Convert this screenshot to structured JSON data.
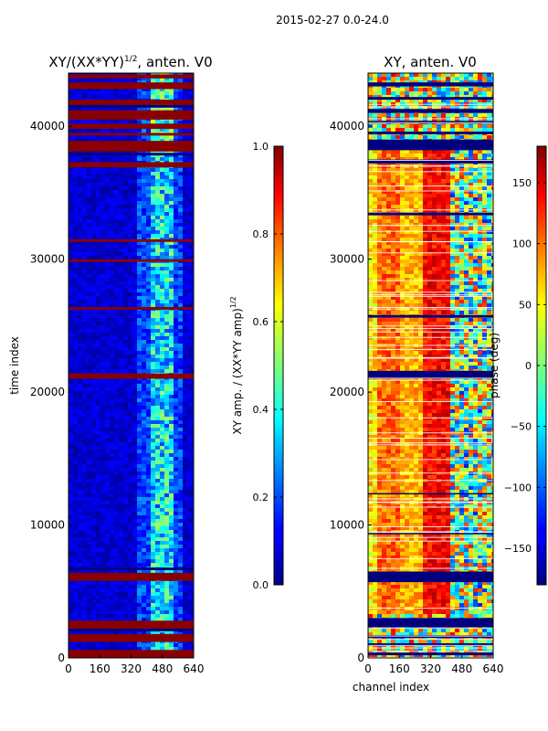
{
  "figure": {
    "suptitle": "2015-02-27 0.0-24.0"
  },
  "chart_data": [
    {
      "type": "heatmap",
      "title_main": "XY/(XX*YY)",
      "title_exp": "1/2",
      "title_tail": ", anten. V0",
      "xlabel": "",
      "ylabel": "time index",
      "xlim": [
        0,
        640
      ],
      "ylim": [
        0,
        44000
      ],
      "xticks": [
        0,
        160,
        320,
        480,
        640
      ],
      "yticks": [
        0,
        10000,
        20000,
        30000,
        40000
      ],
      "colorbar": {
        "label_main": "XY amp. / (XX*YY amp)",
        "label_exp": "1/2",
        "range": [
          0.0,
          1.0
        ],
        "ticks": [
          0.0,
          0.2,
          0.4,
          0.6,
          0.8,
          1.0
        ],
        "tick_labels": [
          "0.0",
          "0.2",
          "0.4",
          "0.6",
          "0.8",
          "1.0"
        ],
        "colormap": "jet"
      }
    },
    {
      "type": "heatmap",
      "title_main": "XY, anten. V0",
      "xlabel": "channel index",
      "ylabel": "",
      "xlim": [
        0,
        640
      ],
      "ylim": [
        0,
        44000
      ],
      "xticks": [
        0,
        160,
        320,
        480,
        640
      ],
      "yticks": [
        0,
        10000,
        20000,
        30000,
        40000
      ],
      "colorbar": {
        "label_main": "phase (deg)",
        "range": [
          -180,
          180
        ],
        "ticks": [
          -150,
          -100,
          -50,
          0,
          50,
          100,
          150
        ],
        "tick_labels": [
          "−150",
          "−100",
          "−50",
          "0",
          "50",
          "100",
          "150"
        ],
        "colormap": "jet"
      }
    }
  ],
  "colors": {
    "jet_dark_blue": "#00007f",
    "jet_blue": "#0000ff",
    "jet_cyan": "#00ffff",
    "jet_yellow": "#ffff00",
    "jet_red": "#ff0000",
    "jet_dark_red": "#7f0000"
  }
}
